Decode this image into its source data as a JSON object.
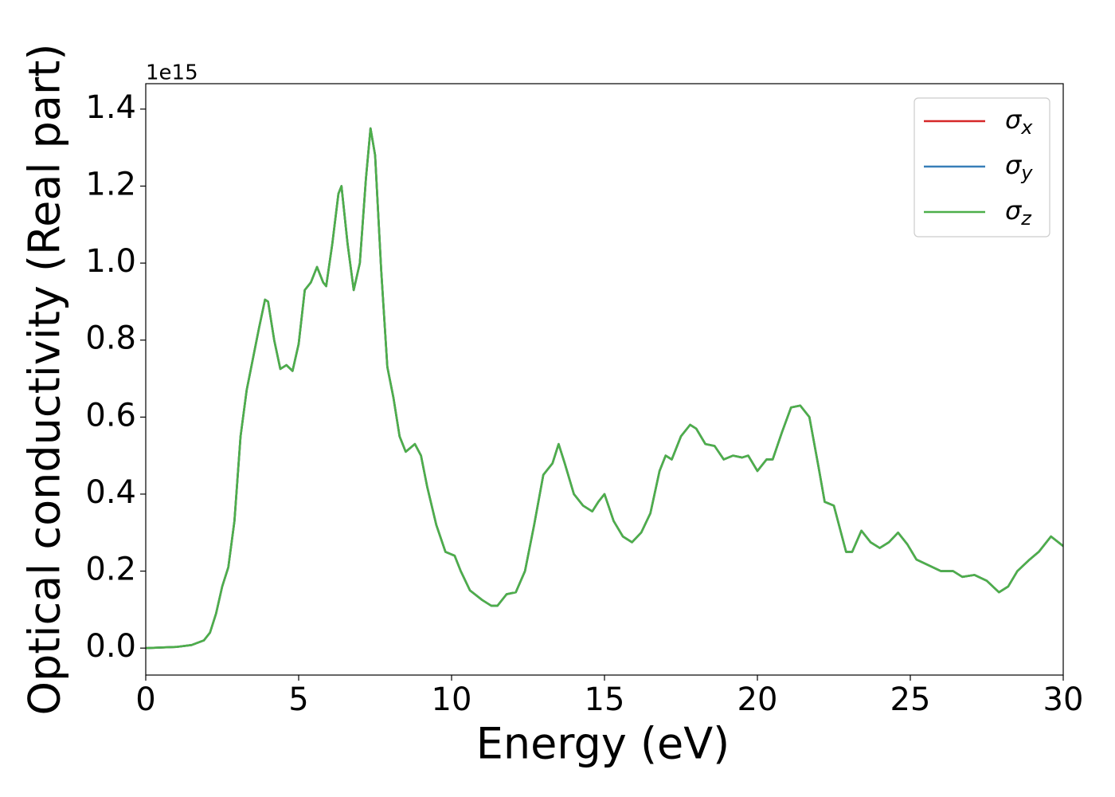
{
  "chart_data": {
    "type": "line",
    "xlabel": "Energy (eV)",
    "ylabel": "Optical conductivity (Real part)",
    "y_offset_label": "1e15",
    "x": [
      0,
      1,
      1.5,
      1.9,
      2.1,
      2.3,
      2.5,
      2.7,
      2.9,
      3.1,
      3.3,
      3.5,
      3.7,
      3.9,
      4.0,
      4.2,
      4.4,
      4.6,
      4.8,
      5.0,
      5.2,
      5.4,
      5.6,
      5.8,
      5.9,
      6.1,
      6.3,
      6.4,
      6.6,
      6.8,
      7.0,
      7.2,
      7.35,
      7.5,
      7.7,
      7.9,
      8.1,
      8.3,
      8.5,
      8.8,
      9.0,
      9.2,
      9.5,
      9.8,
      10.1,
      10.3,
      10.6,
      11.0,
      11.3,
      11.5,
      11.8,
      12.1,
      12.4,
      12.7,
      13.0,
      13.3,
      13.5,
      13.7,
      14.0,
      14.3,
      14.6,
      14.8,
      15.0,
      15.3,
      15.6,
      15.9,
      16.2,
      16.5,
      16.8,
      17.0,
      17.2,
      17.5,
      17.8,
      18.0,
      18.3,
      18.6,
      18.9,
      19.2,
      19.5,
      19.7,
      20.0,
      20.3,
      20.5,
      20.8,
      21.1,
      21.4,
      21.7,
      22.0,
      22.2,
      22.5,
      22.7,
      22.9,
      23.1,
      23.4,
      23.7,
      24.0,
      24.3,
      24.6,
      24.9,
      25.2,
      25.6,
      26.0,
      26.4,
      26.7,
      27.1,
      27.5,
      27.9,
      28.2,
      28.5,
      28.9,
      29.2,
      29.6,
      30.0
    ],
    "series": [
      {
        "name": "σx",
        "color": "#d62728",
        "values": [
          0,
          0.003,
          0.008,
          0.02,
          0.04,
          0.09,
          0.16,
          0.21,
          0.33,
          0.55,
          0.67,
          0.75,
          0.83,
          0.905,
          0.9,
          0.8,
          0.725,
          0.735,
          0.72,
          0.79,
          0.93,
          0.95,
          0.99,
          0.95,
          0.94,
          1.05,
          1.18,
          1.2,
          1.05,
          0.93,
          1.0,
          1.22,
          1.35,
          1.28,
          0.98,
          0.73,
          0.65,
          0.55,
          0.51,
          0.53,
          0.5,
          0.42,
          0.32,
          0.25,
          0.24,
          0.2,
          0.15,
          0.125,
          0.11,
          0.11,
          0.14,
          0.145,
          0.2,
          0.32,
          0.45,
          0.48,
          0.53,
          0.48,
          0.4,
          0.37,
          0.355,
          0.38,
          0.4,
          0.33,
          0.29,
          0.275,
          0.3,
          0.35,
          0.46,
          0.5,
          0.49,
          0.55,
          0.58,
          0.57,
          0.53,
          0.525,
          0.49,
          0.5,
          0.495,
          0.5,
          0.46,
          0.49,
          0.49,
          0.56,
          0.625,
          0.63,
          0.6,
          0.47,
          0.38,
          0.37,
          0.31,
          0.25,
          0.25,
          0.305,
          0.275,
          0.26,
          0.275,
          0.3,
          0.27,
          0.23,
          0.215,
          0.2,
          0.2,
          0.185,
          0.19,
          0.175,
          0.145,
          0.16,
          0.2,
          0.23,
          0.25,
          0.29,
          0.265
        ]
      },
      {
        "name": "σy",
        "color": "#377eb8",
        "values": [
          0,
          0.003,
          0.008,
          0.02,
          0.04,
          0.09,
          0.16,
          0.21,
          0.33,
          0.55,
          0.67,
          0.75,
          0.83,
          0.905,
          0.9,
          0.8,
          0.725,
          0.735,
          0.72,
          0.79,
          0.93,
          0.95,
          0.99,
          0.95,
          0.94,
          1.05,
          1.18,
          1.2,
          1.05,
          0.93,
          1.0,
          1.22,
          1.35,
          1.28,
          0.98,
          0.73,
          0.65,
          0.55,
          0.51,
          0.53,
          0.5,
          0.42,
          0.32,
          0.25,
          0.24,
          0.2,
          0.15,
          0.125,
          0.11,
          0.11,
          0.14,
          0.145,
          0.2,
          0.32,
          0.45,
          0.48,
          0.53,
          0.48,
          0.4,
          0.37,
          0.355,
          0.38,
          0.4,
          0.33,
          0.29,
          0.275,
          0.3,
          0.35,
          0.46,
          0.5,
          0.49,
          0.55,
          0.58,
          0.57,
          0.53,
          0.525,
          0.49,
          0.5,
          0.495,
          0.5,
          0.46,
          0.49,
          0.49,
          0.56,
          0.625,
          0.63,
          0.6,
          0.47,
          0.38,
          0.37,
          0.31,
          0.25,
          0.25,
          0.305,
          0.275,
          0.26,
          0.275,
          0.3,
          0.27,
          0.23,
          0.215,
          0.2,
          0.2,
          0.185,
          0.19,
          0.175,
          0.145,
          0.16,
          0.2,
          0.23,
          0.25,
          0.29,
          0.265
        ]
      },
      {
        "name": "σz",
        "color": "#4daf4a",
        "values": [
          0,
          0.003,
          0.008,
          0.02,
          0.04,
          0.09,
          0.16,
          0.21,
          0.33,
          0.55,
          0.67,
          0.75,
          0.83,
          0.905,
          0.9,
          0.8,
          0.725,
          0.735,
          0.72,
          0.79,
          0.93,
          0.95,
          0.99,
          0.95,
          0.94,
          1.05,
          1.18,
          1.2,
          1.05,
          0.93,
          1.0,
          1.22,
          1.35,
          1.28,
          0.98,
          0.73,
          0.65,
          0.55,
          0.51,
          0.53,
          0.5,
          0.42,
          0.32,
          0.25,
          0.24,
          0.2,
          0.15,
          0.125,
          0.11,
          0.11,
          0.14,
          0.145,
          0.2,
          0.32,
          0.45,
          0.48,
          0.53,
          0.48,
          0.4,
          0.37,
          0.355,
          0.38,
          0.4,
          0.33,
          0.29,
          0.275,
          0.3,
          0.35,
          0.46,
          0.5,
          0.49,
          0.55,
          0.58,
          0.57,
          0.53,
          0.525,
          0.49,
          0.5,
          0.495,
          0.5,
          0.46,
          0.49,
          0.49,
          0.56,
          0.625,
          0.63,
          0.6,
          0.47,
          0.38,
          0.37,
          0.31,
          0.25,
          0.25,
          0.305,
          0.275,
          0.26,
          0.275,
          0.3,
          0.27,
          0.23,
          0.215,
          0.2,
          0.2,
          0.185,
          0.19,
          0.175,
          0.145,
          0.16,
          0.2,
          0.23,
          0.25,
          0.29,
          0.265
        ]
      }
    ],
    "xlim": [
      0,
      30
    ],
    "xticks": [
      0,
      5,
      10,
      15,
      20,
      25,
      30
    ],
    "ylim": [
      -0.07,
      1.466
    ],
    "yticks": [
      {
        "value": 0,
        "label": "0.0"
      },
      0.2,
      0.4,
      0.6,
      0.8,
      {
        "value": 1,
        "label": "1.0"
      },
      1.2,
      1.4
    ],
    "grid": false,
    "legend": "upper right"
  }
}
